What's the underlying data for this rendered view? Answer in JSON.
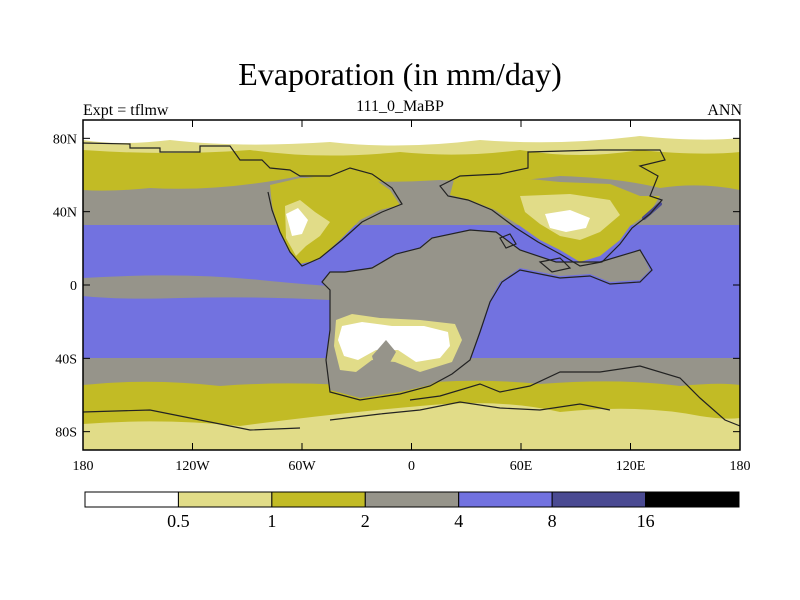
{
  "title": "Evaporation (in mm/day)",
  "subtitle_left": "Expt = tflmw",
  "subtitle_center": "111_0_MaBP",
  "subtitle_right": "ANN",
  "chart_data": {
    "type": "map-contour",
    "variable": "Evaporation",
    "units": "mm/day",
    "lon_range": [
      -180,
      180
    ],
    "lat_range": [
      -90,
      90
    ],
    "x_ticks": [
      "180",
      "120W",
      "60W",
      "0",
      "60E",
      "120E",
      "180"
    ],
    "y_ticks": [
      "80N",
      "40N",
      "0",
      "40S",
      "80S"
    ],
    "levels": [
      "0.5",
      "1",
      "2",
      "4",
      "8",
      "16"
    ],
    "colors": [
      "#ffffff",
      "#e1dc88",
      "#c2bb25",
      "#96948a",
      "#7272e0",
      "#4a4a92",
      "#000000"
    ]
  }
}
